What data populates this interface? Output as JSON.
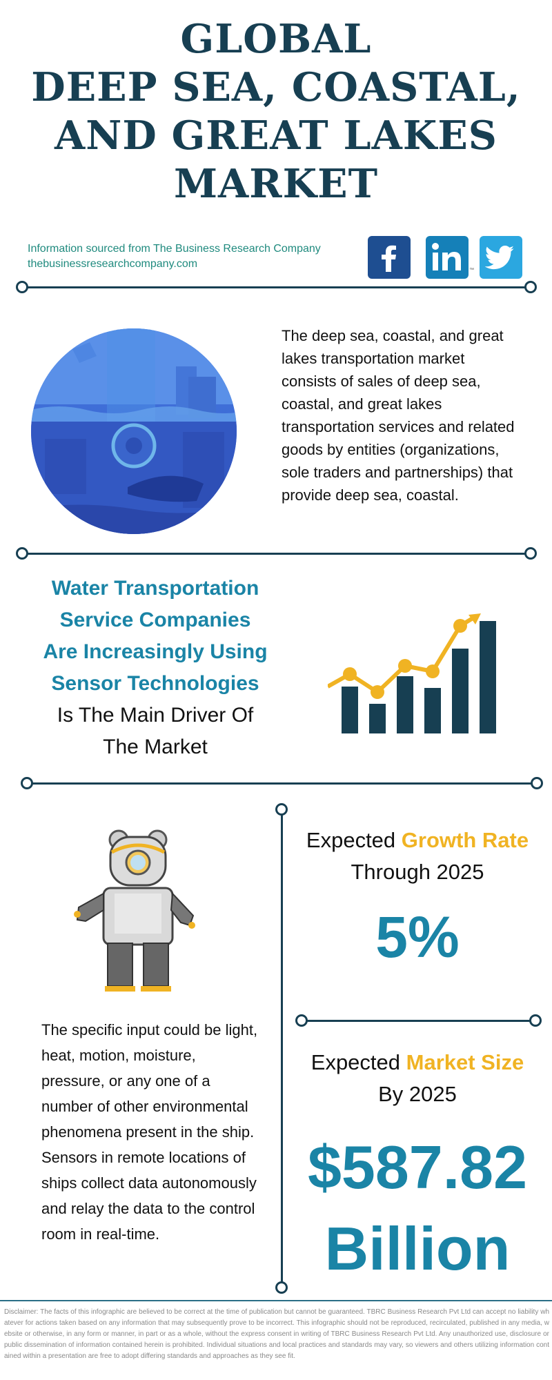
{
  "header": {
    "title_lines": [
      "GLOBAL",
      "DEEP SEA, COASTAL,",
      "AND GREAT LAKES",
      "MARKET"
    ],
    "source_line": "Information sourced from The Business Research Company",
    "source_url": "thebusinessresearchcompany.com"
  },
  "social": {
    "facebook_icon": "facebook-icon",
    "linkedin_icon": "linkedin-icon",
    "twitter_icon": "twitter-icon",
    "linkedin_tm": "™",
    "colors": {
      "facebook": "#1e4e91",
      "linkedin": "#1580b8",
      "twitter": "#2ba7e0"
    }
  },
  "intro": {
    "illustration": "underwater-port-illustration",
    "text": "The deep sea, coastal, and great lakes transportation market consists of sales of deep sea, coastal, and great lakes transportation services and related goods by entities (organizations, sole traders and partnerships) that provide deep sea, coastal."
  },
  "driver": {
    "highlight_lines": [
      "Water Transportation",
      "Service Companies",
      "Are Increasingly Using",
      "Sensor Technologies"
    ],
    "normal_lines": [
      "Is The Main Driver Of",
      "The Market"
    ],
    "icon": "growth-bar-chart-icon"
  },
  "growth": {
    "label_prefix": "Expected ",
    "label_accent": "Growth Rate",
    "label_suffix": "Through 2025",
    "value": "5%"
  },
  "market_size": {
    "label_prefix": "Expected ",
    "label_accent": "Market Size",
    "label_suffix": "By 2025",
    "value_line1": "$587.82",
    "value_line2": "Billion"
  },
  "sensor": {
    "illustration": "diver-robot-illustration",
    "text": "The specific input could be light, heat, motion, moisture, pressure, or any one of a number of other environmental phenomena present in the ship. Sensors in remote locations of ships collect data autonomously and relay the data to the control room in real-time."
  },
  "disclaimer": "Disclaimer: The facts of this infographic are believed to be correct at the time of publication but cannot be guaranteed. TBRC Business Research Pvt Ltd can accept no liability whatever for actions taken based on any information that may subsequently prove to be incorrect. This infographic should not be reproduced, recirculated, published in any media, website or otherwise, in any form or manner, in part or as a whole, without the express consent in writing of TBRC Business Research Pvt Ltd. Any unauthorized use, disclosure or public dissemination of information contained herein is prohibited. Individual situations and local practices and standards may vary, so viewers and others utilizing information contained within a presentation are free to adopt differing standards and approaches as they see fit.",
  "colors": {
    "navy": "#173f52",
    "teal": "#1a84a6",
    "accent": "#f0b323"
  }
}
